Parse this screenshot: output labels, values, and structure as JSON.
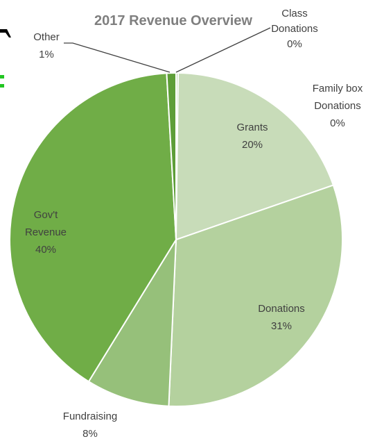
{
  "chart_data": {
    "type": "pie",
    "title": "2017 Revenue Overview",
    "start_angle_deg": 0,
    "direction": "clockwise",
    "slices": [
      {
        "name": "Class Donations",
        "label_lines": [
          "Class",
          "Donations"
        ],
        "percent_label": "0%",
        "value": 0.2,
        "color": "#b6d3a1"
      },
      {
        "name": "Family box Donations",
        "label_lines": [
          "Family box",
          "Donations"
        ],
        "percent_label": "0%",
        "value": 0.0,
        "color": "#c3dab4"
      },
      {
        "name": "Grants",
        "label_lines": [
          "Grants"
        ],
        "percent_label": "20%",
        "value": 19.5,
        "color": "#c8dcb9"
      },
      {
        "name": "Donations",
        "label_lines": [
          "Donations"
        ],
        "percent_label": "31%",
        "value": 31.0,
        "color": "#b4d19e"
      },
      {
        "name": "Fundraising",
        "label_lines": [
          "Fundraising"
        ],
        "percent_label": "8%",
        "value": 8.1,
        "color": "#96c07a"
      },
      {
        "name": "Gov't Revenue",
        "label_lines": [
          "Gov't",
          "Revenue"
        ],
        "percent_label": "40%",
        "value": 40.3,
        "color": "#70ad47"
      },
      {
        "name": "Other",
        "label_lines": [
          "Other"
        ],
        "percent_label": "1%",
        "value": 0.9,
        "color": "#5e9e38"
      }
    ],
    "legend": "none",
    "label_color": "#404040",
    "title_color": "#7f7f7f"
  }
}
